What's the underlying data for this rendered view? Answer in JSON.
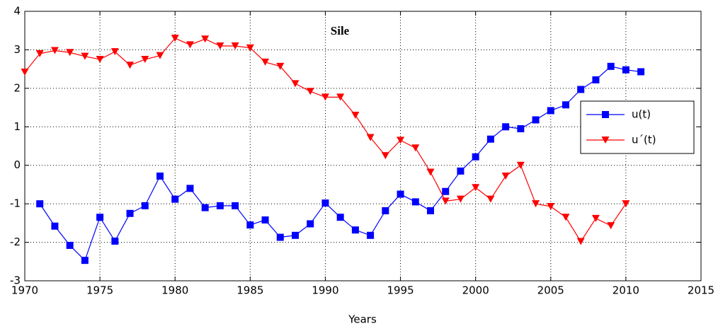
{
  "chart_data": {
    "type": "line",
    "title": "Sile",
    "x_label": "Years",
    "xlim": [
      1970,
      2015
    ],
    "xticks": [
      1970,
      1975,
      1980,
      1985,
      1990,
      1995,
      2000,
      2005,
      2010,
      2015
    ],
    "ylim": [
      -3,
      4
    ],
    "yticks": [
      -3,
      -2,
      -1,
      0,
      1,
      2,
      3,
      4
    ],
    "grid": true,
    "legend": "right",
    "series": [
      {
        "name": "u(t)",
        "color": "#0000ff",
        "marker": "square",
        "x": [
          1971,
          1972,
          1973,
          1974,
          1975,
          1976,
          1977,
          1978,
          1979,
          1980,
          1981,
          1982,
          1983,
          1984,
          1985,
          1986,
          1987,
          1988,
          1989,
          1990,
          1991,
          1992,
          1993,
          1994,
          1995,
          1996,
          1997,
          1998,
          1999,
          2000,
          2001,
          2002,
          2003,
          2004,
          2005,
          2006,
          2007,
          2008,
          2009,
          2010,
          2011
        ],
        "values": [
          -1.0,
          -1.58,
          -2.08,
          -2.47,
          -1.35,
          -1.97,
          -1.25,
          -1.05,
          -0.28,
          -0.88,
          -0.6,
          -1.1,
          -1.05,
          -1.05,
          -1.55,
          -1.42,
          -1.87,
          -1.82,
          -1.52,
          -0.98,
          -1.35,
          -1.68,
          -1.82,
          -1.18,
          -0.75,
          -0.95,
          -1.18,
          -0.68,
          -0.15,
          0.22,
          0.68,
          1.0,
          0.95,
          1.18,
          1.42,
          1.57,
          1.97,
          2.22,
          2.57,
          2.48,
          2.43
        ]
      },
      {
        "name": "u´(t)",
        "color": "#ff0000",
        "marker": "triangle-down",
        "x": [
          1970,
          1971,
          1972,
          1973,
          1974,
          1975,
          1976,
          1977,
          1978,
          1979,
          1980,
          1981,
          1982,
          1983,
          1984,
          1985,
          1986,
          1987,
          1988,
          1989,
          1990,
          1991,
          1992,
          1993,
          1994,
          1995,
          1996,
          1997,
          1998,
          1999,
          2000,
          2001,
          2002,
          2003,
          2004,
          2005,
          2006,
          2007,
          2008,
          2009,
          2010
        ],
        "values": [
          2.42,
          2.9,
          2.98,
          2.93,
          2.83,
          2.75,
          2.95,
          2.6,
          2.75,
          2.85,
          3.3,
          3.13,
          3.28,
          3.1,
          3.1,
          3.05,
          2.68,
          2.57,
          2.12,
          1.92,
          1.77,
          1.77,
          1.3,
          0.72,
          0.25,
          0.65,
          0.45,
          -0.18,
          -0.93,
          -0.88,
          -0.58,
          -0.88,
          -0.28,
          0.0,
          -1.0,
          -1.07,
          -1.35,
          -1.98,
          -1.38,
          -1.57,
          -1.0
        ]
      }
    ]
  }
}
